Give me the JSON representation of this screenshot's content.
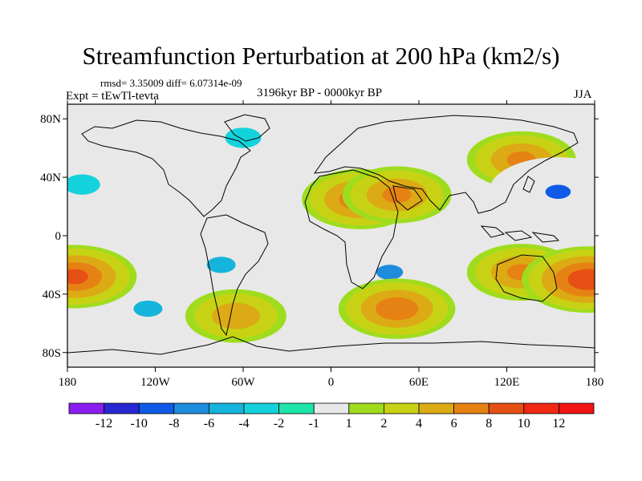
{
  "header": {
    "title": "Streamfunction Perturbation at 200 hPa (km2/s)",
    "stats": "rmsd= 3.35009 diff= 6.07314e-09",
    "experiment": "Expt = tEwTl-tevta",
    "period": "3196kyr BP - 0000kyr BP",
    "season": "JJA"
  },
  "chart_data": {
    "type": "heatmap",
    "title": "Streamfunction Perturbation at 200 hPa (km2/s)",
    "projection": "cylindrical equidistant",
    "x_range": [
      -180,
      180
    ],
    "y_range": [
      -90,
      90
    ],
    "x_ticks": [
      {
        "value": -180,
        "label": "180"
      },
      {
        "value": -120,
        "label": "120W"
      },
      {
        "value": -60,
        "label": "60W"
      },
      {
        "value": 0,
        "label": "0"
      },
      {
        "value": 60,
        "label": "60E"
      },
      {
        "value": 120,
        "label": "120E"
      },
      {
        "value": 180,
        "label": "180"
      }
    ],
    "y_ticks": [
      {
        "value": 80,
        "label": "80N"
      },
      {
        "value": 40,
        "label": "40N"
      },
      {
        "value": 0,
        "label": "0"
      },
      {
        "value": -40,
        "label": "40S"
      },
      {
        "value": -80,
        "label": "80S"
      }
    ],
    "colorbar": {
      "labels": [
        "-12",
        "-10",
        "-8",
        "-6",
        "-4",
        "-2",
        "-1",
        "1",
        "2",
        "4",
        "6",
        "8",
        "10",
        "12"
      ],
      "colors": [
        "#8a1ef0",
        "#2828d2",
        "#0f5ae6",
        "#1e8cdc",
        "#14b4dc",
        "#14d2dc",
        "#1ee6aa",
        "#e8e8e8",
        "#a0dc1e",
        "#c8d214",
        "#dcaa14",
        "#e68214",
        "#e65014",
        "#f02814",
        "#f01414"
      ]
    },
    "features": [
      {
        "name": "anticyclone N Africa / Arabia",
        "lon": 20,
        "lat": 25,
        "value": 7
      },
      {
        "name": "anticyclone Arabia",
        "lon": 45,
        "lat": 28,
        "value": 6
      },
      {
        "name": "anticyclone NW Pacific / Japan",
        "lon": 130,
        "lat": 52,
        "value": 6
      },
      {
        "name": "cyclone W Pacific",
        "lon": 155,
        "lat": 30,
        "value": -10
      },
      {
        "name": "cyclone Arctic / E Canada",
        "lon": -60,
        "lat": 67,
        "value": -3
      },
      {
        "name": "cyclone C Pacific",
        "lon": -170,
        "lat": 35,
        "value": -3
      },
      {
        "name": "cyclone SE Pacific",
        "lon": -75,
        "lat": -20,
        "value": -6
      },
      {
        "name": "cyclone S Africa / Indian Ocean",
        "lon": 40,
        "lat": -25,
        "value": -8
      },
      {
        "name": "cyclone S Pacific",
        "lon": -125,
        "lat": -50,
        "value": -6
      },
      {
        "name": "anticyclone SW Pacific",
        "lon": -175,
        "lat": -28,
        "value": 8
      },
      {
        "name": "anticyclone SE Pacific",
        "lon": -65,
        "lat": -55,
        "value": 5
      },
      {
        "name": "anticyclone S Indian Ocean",
        "lon": 45,
        "lat": -50,
        "value": 7
      },
      {
        "name": "anticyclone Australia",
        "lon": 130,
        "lat": -25,
        "value": 6
      },
      {
        "name": "anticyclone E Australia / Tasman",
        "lon": 175,
        "lat": -30,
        "value": 9
      }
    ]
  }
}
